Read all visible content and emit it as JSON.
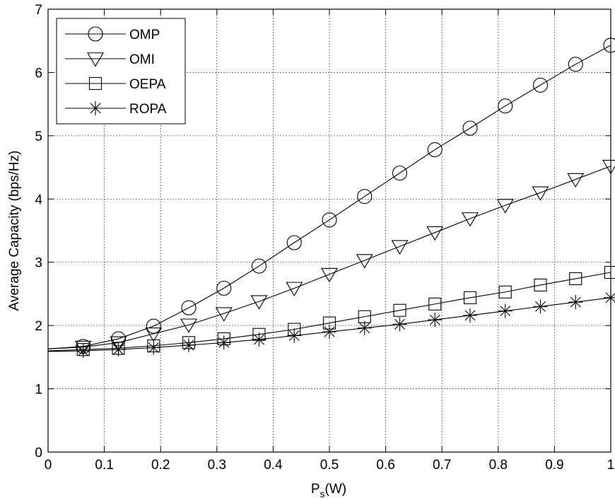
{
  "chart_data": {
    "type": "line",
    "title": "",
    "xlabel": "P_s(W)",
    "xlabel_main": "P",
    "xlabel_sub": "s",
    "xlabel_tail": "(W)",
    "ylabel": "Average Capacity (bps/Hz)",
    "xlim": [
      0,
      1
    ],
    "ylim": [
      0,
      7
    ],
    "xticks": [
      0,
      0.1,
      0.2,
      0.3,
      0.4,
      0.5,
      0.6,
      0.7,
      0.8,
      0.9,
      1
    ],
    "xtick_labels": [
      "0",
      "0.1",
      "0.2",
      "0.3",
      "0.4",
      "0.5",
      "0.6",
      "0.7",
      "0.8",
      "0.9",
      "1"
    ],
    "yticks": [
      0,
      1,
      2,
      3,
      4,
      5,
      6,
      7
    ],
    "ytick_labels": [
      "0",
      "1",
      "2",
      "3",
      "4",
      "5",
      "6",
      "7"
    ],
    "grid": true,
    "legend_position": "top-left",
    "line_color": "#000000",
    "x": [
      0,
      0.0625,
      0.125,
      0.1875,
      0.25,
      0.3125,
      0.375,
      0.4375,
      0.5,
      0.5625,
      0.625,
      0.6875,
      0.75,
      0.8125,
      0.875,
      0.9375,
      1.0
    ],
    "series": [
      {
        "name": "OMP",
        "marker": "circle",
        "values": [
          1.63,
          1.67,
          1.79,
          1.99,
          2.28,
          2.59,
          2.94,
          3.31,
          3.67,
          4.04,
          4.41,
          4.78,
          5.12,
          5.47,
          5.8,
          6.13,
          6.43
        ],
        "marker_from": 1
      },
      {
        "name": "OMI",
        "marker": "triangle-down",
        "values": [
          1.63,
          1.66,
          1.73,
          1.87,
          2.01,
          2.19,
          2.38,
          2.59,
          2.81,
          3.03,
          3.25,
          3.47,
          3.69,
          3.9,
          4.1,
          4.31,
          4.52
        ],
        "marker_from": 1
      },
      {
        "name": "OEPA",
        "marker": "square",
        "values": [
          1.6,
          1.62,
          1.64,
          1.68,
          1.73,
          1.79,
          1.86,
          1.94,
          2.04,
          2.14,
          2.24,
          2.34,
          2.44,
          2.53,
          2.64,
          2.74,
          2.84
        ],
        "marker_from": 1
      },
      {
        "name": "ROPA",
        "marker": "asterisk",
        "values": [
          1.59,
          1.6,
          1.62,
          1.65,
          1.69,
          1.73,
          1.78,
          1.84,
          1.9,
          1.96,
          2.02,
          2.09,
          2.16,
          2.23,
          2.3,
          2.37,
          2.44
        ],
        "marker_from": 1
      }
    ]
  }
}
